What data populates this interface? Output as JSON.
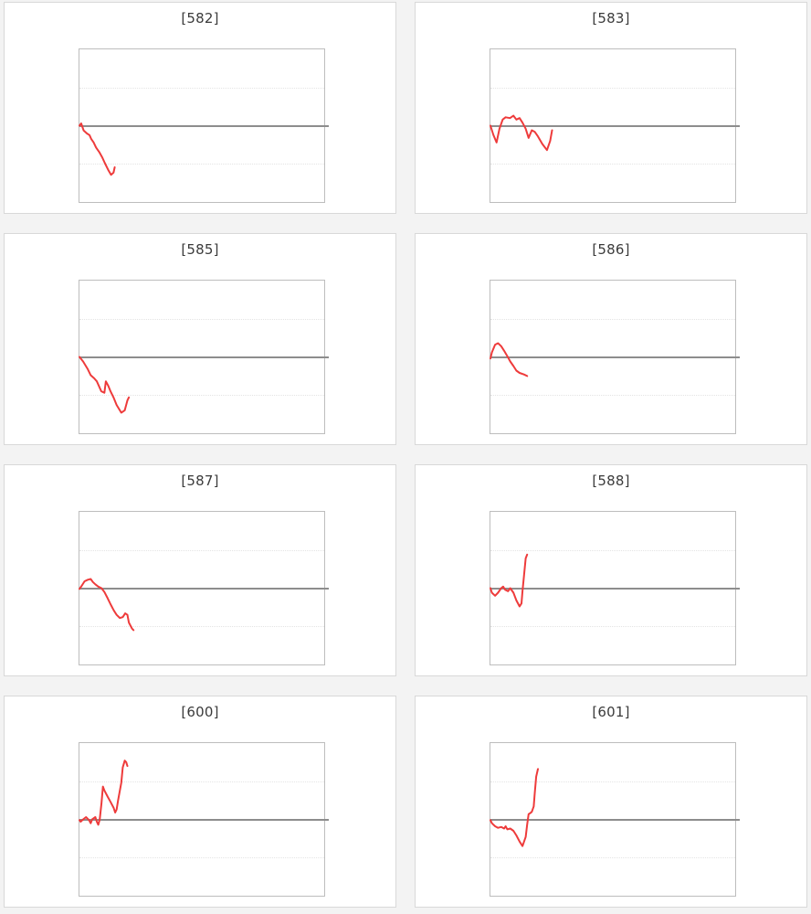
{
  "page": {
    "background": "#f3f3f3",
    "cell_background": "#ffffff",
    "cell_border_color": "#d8d8d8",
    "plot_border_color": "#bdbdbd",
    "zero_line_color": "#8d8d8d",
    "grid_line_color": "#e4e4e4",
    "series_color": "#ee3b3b",
    "title_color": "#3b3b3b"
  },
  "chart_data": [
    {
      "type": "line",
      "title": "[582]",
      "xlabel": "",
      "ylabel": "",
      "x_range": [
        0,
        1
      ],
      "ylim": [
        -1,
        1
      ],
      "zero_line": 0,
      "gridlines": [
        0.5,
        -0.5
      ],
      "grid": "horizontal-dotted",
      "legend": "none",
      "series": [
        {
          "name": "value",
          "points": [
            [
              0,
              0.0
            ],
            [
              0.007,
              0.03
            ],
            [
              0.017,
              -0.064
            ],
            [
              0.031,
              -0.103
            ],
            [
              0.041,
              -0.123
            ],
            [
              0.048,
              -0.175
            ],
            [
              0.058,
              -0.219
            ],
            [
              0.068,
              -0.286
            ],
            [
              0.081,
              -0.346
            ],
            [
              0.093,
              -0.414
            ],
            [
              0.103,
              -0.485
            ],
            [
              0.117,
              -0.577
            ],
            [
              0.129,
              -0.644
            ],
            [
              0.139,
              -0.616
            ],
            [
              0.144,
              -0.545
            ]
          ]
        }
      ]
    },
    {
      "type": "line",
      "title": "[583]",
      "xlabel": "",
      "ylabel": "",
      "x_range": [
        0,
        1
      ],
      "ylim": [
        -1,
        1
      ],
      "zero_line": 0,
      "gridlines": [
        0.5,
        -0.5
      ],
      "grid": "horizontal-dotted",
      "legend": "none",
      "series": [
        {
          "name": "value",
          "points": [
            [
              0,
              0.0
            ],
            [
              0.012,
              -0.12
            ],
            [
              0.025,
              -0.22
            ],
            [
              0.037,
              -0.04
            ],
            [
              0.05,
              0.08
            ],
            [
              0.062,
              0.11
            ],
            [
              0.08,
              0.1
            ],
            [
              0.094,
              0.13
            ],
            [
              0.106,
              0.08
            ],
            [
              0.119,
              0.1
            ],
            [
              0.131,
              0.04
            ],
            [
              0.144,
              -0.04
            ],
            [
              0.156,
              -0.16
            ],
            [
              0.169,
              -0.06
            ],
            [
              0.181,
              -0.08
            ],
            [
              0.194,
              -0.14
            ],
            [
              0.212,
              -0.24
            ],
            [
              0.231,
              -0.32
            ],
            [
              0.244,
              -0.2
            ],
            [
              0.252,
              -0.06
            ]
          ]
        }
      ]
    },
    {
      "type": "line",
      "title": "[585]",
      "xlabel": "",
      "ylabel": "",
      "x_range": [
        0,
        1
      ],
      "ylim": [
        -1,
        1
      ],
      "zero_line": 0,
      "gridlines": [
        0.5,
        -0.5
      ],
      "grid": "horizontal-dotted",
      "legend": "none",
      "series": [
        {
          "name": "value",
          "points": [
            [
              0,
              0.0
            ],
            [
              0.015,
              -0.06
            ],
            [
              0.034,
              -0.16
            ],
            [
              0.046,
              -0.24
            ],
            [
              0.06,
              -0.28
            ],
            [
              0.071,
              -0.32
            ],
            [
              0.089,
              -0.45
            ],
            [
              0.102,
              -0.47
            ],
            [
              0.108,
              -0.32
            ],
            [
              0.118,
              -0.38
            ],
            [
              0.127,
              -0.45
            ],
            [
              0.139,
              -0.53
            ],
            [
              0.152,
              -0.63
            ],
            [
              0.171,
              -0.73
            ],
            [
              0.185,
              -0.7
            ],
            [
              0.196,
              -0.57
            ],
            [
              0.202,
              -0.53
            ]
          ]
        }
      ]
    },
    {
      "type": "line",
      "title": "[586]",
      "xlabel": "",
      "ylabel": "",
      "x_range": [
        0,
        1
      ],
      "ylim": [
        -1,
        1
      ],
      "zero_line": 0,
      "gridlines": [
        0.5,
        -0.5
      ],
      "grid": "horizontal-dotted",
      "legend": "none",
      "series": [
        {
          "name": "value",
          "points": [
            [
              0,
              -0.02
            ],
            [
              0.006,
              0.06
            ],
            [
              0.019,
              0.16
            ],
            [
              0.031,
              0.18
            ],
            [
              0.044,
              0.14
            ],
            [
              0.056,
              0.08
            ],
            [
              0.069,
              0.01
            ],
            [
              0.081,
              -0.06
            ],
            [
              0.094,
              -0.12
            ],
            [
              0.106,
              -0.18
            ],
            [
              0.119,
              -0.21
            ],
            [
              0.137,
              -0.23
            ],
            [
              0.15,
              -0.25
            ]
          ]
        }
      ]
    },
    {
      "type": "line",
      "title": "[587]",
      "xlabel": "",
      "ylabel": "",
      "x_range": [
        0,
        1
      ],
      "ylim": [
        -1,
        1
      ],
      "zero_line": 0,
      "gridlines": [
        0.5,
        -0.5
      ],
      "grid": "horizontal-dotted",
      "legend": "none",
      "series": [
        {
          "name": "value",
          "points": [
            [
              0,
              -0.01
            ],
            [
              0.009,
              0.03
            ],
            [
              0.021,
              0.09
            ],
            [
              0.034,
              0.11
            ],
            [
              0.046,
              0.12
            ],
            [
              0.055,
              0.08
            ],
            [
              0.065,
              0.05
            ],
            [
              0.077,
              0.02
            ],
            [
              0.09,
              0.0
            ],
            [
              0.102,
              -0.05
            ],
            [
              0.115,
              -0.13
            ],
            [
              0.127,
              -0.21
            ],
            [
              0.14,
              -0.29
            ],
            [
              0.152,
              -0.35
            ],
            [
              0.165,
              -0.39
            ],
            [
              0.177,
              -0.38
            ],
            [
              0.187,
              -0.33
            ],
            [
              0.196,
              -0.35
            ],
            [
              0.202,
              -0.45
            ],
            [
              0.215,
              -0.53
            ],
            [
              0.221,
              -0.55
            ]
          ]
        }
      ]
    },
    {
      "type": "line",
      "title": "[588]",
      "xlabel": "",
      "ylabel": "",
      "x_range": [
        0,
        1
      ],
      "ylim": [
        -1,
        1
      ],
      "zero_line": 0,
      "gridlines": [
        0.5,
        -0.5
      ],
      "grid": "horizontal-dotted",
      "legend": "none",
      "series": [
        {
          "name": "value",
          "points": [
            [
              0,
              0.0
            ],
            [
              0.006,
              -0.06
            ],
            [
              0.019,
              -0.1
            ],
            [
              0.031,
              -0.06
            ],
            [
              0.044,
              0.0
            ],
            [
              0.052,
              0.02
            ],
            [
              0.06,
              -0.02
            ],
            [
              0.072,
              -0.04
            ],
            [
              0.081,
              0.0
            ],
            [
              0.094,
              -0.06
            ],
            [
              0.106,
              -0.16
            ],
            [
              0.119,
              -0.24
            ],
            [
              0.127,
              -0.2
            ],
            [
              0.131,
              -0.04
            ],
            [
              0.144,
              0.39
            ],
            [
              0.15,
              0.44
            ]
          ]
        }
      ]
    },
    {
      "type": "line",
      "title": "[600]",
      "xlabel": "",
      "ylabel": "",
      "x_range": [
        0,
        1
      ],
      "ylim": [
        -1,
        1
      ],
      "zero_line": 0,
      "gridlines": [
        0.5,
        -0.5
      ],
      "grid": "horizontal-dotted",
      "legend": "none",
      "series": [
        {
          "name": "value",
          "points": [
            [
              0,
              -0.01
            ],
            [
              0.005,
              -0.03
            ],
            [
              0.015,
              0.0
            ],
            [
              0.027,
              0.03
            ],
            [
              0.039,
              -0.01
            ],
            [
              0.046,
              -0.05
            ],
            [
              0.052,
              0.0
            ],
            [
              0.065,
              0.03
            ],
            [
              0.071,
              -0.03
            ],
            [
              0.077,
              -0.07
            ],
            [
              0.083,
              0.0
            ],
            [
              0.09,
              0.21
            ],
            [
              0.096,
              0.43
            ],
            [
              0.102,
              0.38
            ],
            [
              0.115,
              0.3
            ],
            [
              0.127,
              0.23
            ],
            [
              0.14,
              0.15
            ],
            [
              0.146,
              0.09
            ],
            [
              0.152,
              0.13
            ],
            [
              0.158,
              0.25
            ],
            [
              0.171,
              0.48
            ],
            [
              0.177,
              0.68
            ],
            [
              0.185,
              0.77
            ],
            [
              0.191,
              0.75
            ],
            [
              0.196,
              0.7
            ]
          ]
        }
      ]
    },
    {
      "type": "line",
      "title": "[601]",
      "xlabel": "",
      "ylabel": "",
      "x_range": [
        0,
        1
      ],
      "ylim": [
        -1,
        1
      ],
      "zero_line": 0,
      "gridlines": [
        0.5,
        -0.5
      ],
      "grid": "horizontal-dotted",
      "legend": "none",
      "series": [
        {
          "name": "value",
          "points": [
            [
              0,
              -0.01
            ],
            [
              0.006,
              -0.05
            ],
            [
              0.019,
              -0.09
            ],
            [
              0.031,
              -0.11
            ],
            [
              0.044,
              -0.1
            ],
            [
              0.056,
              -0.12
            ],
            [
              0.062,
              -0.09
            ],
            [
              0.069,
              -0.13
            ],
            [
              0.081,
              -0.12
            ],
            [
              0.094,
              -0.15
            ],
            [
              0.106,
              -0.21
            ],
            [
              0.119,
              -0.29
            ],
            [
              0.131,
              -0.35
            ],
            [
              0.144,
              -0.23
            ],
            [
              0.15,
              -0.07
            ],
            [
              0.156,
              0.07
            ],
            [
              0.162,
              0.08
            ],
            [
              0.169,
              0.1
            ],
            [
              0.177,
              0.17
            ],
            [
              0.181,
              0.34
            ],
            [
              0.187,
              0.56
            ],
            [
              0.194,
              0.66
            ]
          ]
        }
      ]
    }
  ]
}
